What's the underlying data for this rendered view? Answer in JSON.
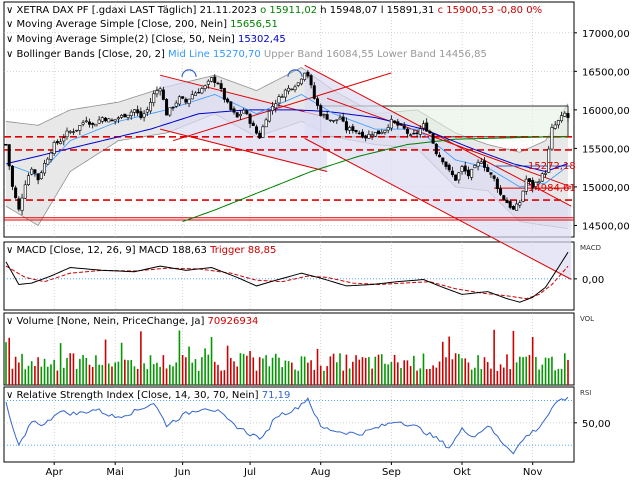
{
  "colors": {
    "price": "#000000",
    "sma200": "#008000",
    "sma50": "#0000cc",
    "bb_mid": "#3399ff",
    "bb_band": "#909090",
    "bb_fill": "#e8e8e8",
    "trend_red": "#e00000",
    "channel_fill": "#dcdcf4",
    "rect_fill": "#e4f2e4",
    "up": "#009900",
    "down": "#cc0000",
    "ref_blue": "#3366cc",
    "rsi_line": "#3366cc",
    "macd_trigger": "#cc0000"
  },
  "header": {
    "row1": [
      {
        "text": "XETRA DAX PF [.gdaxi LAST Täglich]  21.11.2023",
        "color": "#000000"
      },
      {
        "text": "o 15911,02",
        "color": "#008000"
      },
      {
        "text": "h 15948,07",
        "color": "#000000"
      },
      {
        "text": "l 15891,31",
        "color": "#000000"
      },
      {
        "text": "c 15900,53",
        "color": "#cc0000"
      },
      {
        "text": "-0,80",
        "color": "#cc0000"
      },
      {
        "text": "0%",
        "color": "#cc0000"
      }
    ],
    "row2": [
      {
        "text": "Moving Average Simple  [Close, 200, Nein]",
        "color": "#000000"
      },
      {
        "text": "15656,51",
        "color": "#008000"
      }
    ],
    "row3": [
      {
        "text": "Moving Average Simple(2)  [Close, 50, Nein]",
        "color": "#000000"
      },
      {
        "text": "15302,45",
        "color": "#0000cc"
      }
    ],
    "row4": [
      {
        "text": "Bollinger Bands  [Close, 20, 2]",
        "color": "#000000"
      },
      {
        "text": "Mid Line 15270,70",
        "color": "#3399ff"
      },
      {
        "text": "Upper Band 16084,55",
        "color": "#999999"
      },
      {
        "text": "Lower Band 14456,85",
        "color": "#999999"
      }
    ]
  },
  "panels": {
    "macd": {
      "title": [
        {
          "text": "MACD  [Close, 12, 26, 9]",
          "color": "#000000"
        },
        {
          "text": "MACD 188,63",
          "color": "#000000"
        },
        {
          "text": "Trigger 88,85",
          "color": "#cc0000"
        }
      ],
      "side_label": "MACD",
      "tick_label": "0,00"
    },
    "volume": {
      "title": [
        {
          "text": "Volume  [None, Nein, PriceChange, Ja]",
          "color": "#000000"
        },
        {
          "text": "70926934",
          "color": "#cc0000"
        }
      ],
      "side_label": "VOL"
    },
    "rsi": {
      "title": [
        {
          "text": "Relative Strength Index  [Close, 14, 30, 70, Nein]",
          "color": "#000000"
        },
        {
          "text": "71,19",
          "color": "#3366cc"
        }
      ],
      "side_label": "RSI",
      "tick_label": "50,00"
    }
  },
  "price_labels": {
    "a": "15272,18",
    "b": "14984,61"
  },
  "chart_data": {
    "type": "candlestick",
    "y_ticks": [
      14500,
      15000,
      15500,
      16000,
      16500,
      17000
    ],
    "y_tick_labels": [
      "14500,00",
      "15000,00",
      "15500,00",
      "16000,00",
      "16500,00",
      "17000,00"
    ],
    "ylim": [
      14350,
      17400
    ],
    "x_ticks": [
      {
        "label": "Apr",
        "day": 15
      },
      {
        "label": "Mai",
        "day": 34
      },
      {
        "label": "Jun",
        "day": 55
      },
      {
        "label": "Jul",
        "day": 76
      },
      {
        "label": "Aug",
        "day": 98
      },
      {
        "label": "Sep",
        "day": 120
      },
      {
        "label": "Okt",
        "day": 142
      },
      {
        "label": "Nov",
        "day": 164
      }
    ],
    "n_days": 176,
    "price_anchors": [
      [
        0,
        15550
      ],
      [
        2,
        15000
      ],
      [
        4,
        14700
      ],
      [
        6,
        15050
      ],
      [
        8,
        15250
      ],
      [
        10,
        15100
      ],
      [
        12,
        15300
      ],
      [
        15,
        15550
      ],
      [
        17,
        15600
      ],
      [
        19,
        15700
      ],
      [
        22,
        15750
      ],
      [
        25,
        15880
      ],
      [
        27,
        15800
      ],
      [
        30,
        15900
      ],
      [
        33,
        15850
      ],
      [
        35,
        15900
      ],
      [
        38,
        15950
      ],
      [
        40,
        16000
      ],
      [
        42,
        15900
      ],
      [
        44,
        16000
      ],
      [
        46,
        16200
      ],
      [
        48,
        16300
      ],
      [
        50,
        15950
      ],
      [
        52,
        16050
      ],
      [
        54,
        16150
      ],
      [
        56,
        16100
      ],
      [
        58,
        16200
      ],
      [
        60,
        16250
      ],
      [
        62,
        16300
      ],
      [
        64,
        16400
      ],
      [
        66,
        16350
      ],
      [
        68,
        16150
      ],
      [
        70,
        16000
      ],
      [
        72,
        15900
      ],
      [
        74,
        16000
      ],
      [
        76,
        15850
      ],
      [
        78,
        15700
      ],
      [
        79,
        15650
      ],
      [
        81,
        15900
      ],
      [
        83,
        16050
      ],
      [
        85,
        16150
      ],
      [
        87,
        16250
      ],
      [
        89,
        16300
      ],
      [
        91,
        16350
      ],
      [
        93,
        16500
      ],
      [
        94,
        16450
      ],
      [
        96,
        16150
      ],
      [
        98,
        15950
      ],
      [
        100,
        15900
      ],
      [
        102,
        15850
      ],
      [
        104,
        15900
      ],
      [
        106,
        15750
      ],
      [
        108,
        15750
      ],
      [
        110,
        15700
      ],
      [
        112,
        15650
      ],
      [
        114,
        15700
      ],
      [
        116,
        15700
      ],
      [
        118,
        15750
      ],
      [
        120,
        15850
      ],
      [
        122,
        15800
      ],
      [
        124,
        15750
      ],
      [
        126,
        15650
      ],
      [
        128,
        15700
      ],
      [
        130,
        15800
      ],
      [
        132,
        15700
      ],
      [
        134,
        15450
      ],
      [
        136,
        15350
      ],
      [
        138,
        15200
      ],
      [
        140,
        15100
      ],
      [
        142,
        15250
      ],
      [
        144,
        15150
      ],
      [
        146,
        15250
      ],
      [
        148,
        15350
      ],
      [
        150,
        15200
      ],
      [
        152,
        15100
      ],
      [
        154,
        14900
      ],
      [
        156,
        14800
      ],
      [
        158,
        14700
      ],
      [
        160,
        14800
      ],
      [
        162,
        15100
      ],
      [
        164,
        15000
      ],
      [
        166,
        15100
      ],
      [
        168,
        15200
      ],
      [
        170,
        15750
      ],
      [
        172,
        15850
      ],
      [
        174,
        15950
      ],
      [
        175,
        15900
      ]
    ],
    "sma200_anchors": [
      [
        55,
        14550
      ],
      [
        65,
        14700
      ],
      [
        80,
        14950
      ],
      [
        95,
        15200
      ],
      [
        110,
        15400
      ],
      [
        125,
        15550
      ],
      [
        140,
        15620
      ],
      [
        160,
        15640
      ],
      [
        175,
        15656
      ]
    ],
    "sma50_anchors": [
      [
        0,
        15300
      ],
      [
        15,
        15450
      ],
      [
        30,
        15600
      ],
      [
        45,
        15750
      ],
      [
        60,
        15950
      ],
      [
        75,
        16000
      ],
      [
        90,
        16000
      ],
      [
        100,
        15980
      ],
      [
        115,
        15900
      ],
      [
        130,
        15750
      ],
      [
        145,
        15500
      ],
      [
        158,
        15300
      ],
      [
        168,
        15200
      ],
      [
        175,
        15302
      ]
    ],
    "bb_mid_anchors": [
      [
        0,
        15300
      ],
      [
        10,
        15150
      ],
      [
        20,
        15600
      ],
      [
        35,
        15850
      ],
      [
        50,
        16000
      ],
      [
        65,
        16200
      ],
      [
        78,
        15950
      ],
      [
        92,
        16200
      ],
      [
        102,
        15950
      ],
      [
        115,
        15750
      ],
      [
        128,
        15750
      ],
      [
        140,
        15350
      ],
      [
        150,
        15250
      ],
      [
        160,
        15000
      ],
      [
        168,
        15050
      ],
      [
        175,
        15270
      ]
    ],
    "bb_halfwidth_anchors": [
      [
        0,
        550
      ],
      [
        10,
        650
      ],
      [
        20,
        400
      ],
      [
        35,
        250
      ],
      [
        50,
        300
      ],
      [
        65,
        250
      ],
      [
        78,
        300
      ],
      [
        92,
        350
      ],
      [
        102,
        300
      ],
      [
        115,
        200
      ],
      [
        128,
        250
      ],
      [
        140,
        350
      ],
      [
        150,
        300
      ],
      [
        160,
        450
      ],
      [
        168,
        550
      ],
      [
        175,
        810
      ]
    ],
    "horizontal_levels": [
      15650,
      15480,
      14830,
      14600,
      14570
    ],
    "green_rect": {
      "x0": 98,
      "x1": 176,
      "y0": 15650,
      "y1": 16050
    },
    "macd_anchors": [
      [
        0,
        120
      ],
      [
        4,
        -40
      ],
      [
        8,
        -30
      ],
      [
        14,
        20
      ],
      [
        20,
        80
      ],
      [
        30,
        60
      ],
      [
        40,
        50
      ],
      [
        48,
        90
      ],
      [
        56,
        60
      ],
      [
        64,
        80
      ],
      [
        72,
        10
      ],
      [
        78,
        -50
      ],
      [
        84,
        -10
      ],
      [
        92,
        40
      ],
      [
        98,
        5
      ],
      [
        106,
        -50
      ],
      [
        114,
        -40
      ],
      [
        122,
        -20
      ],
      [
        130,
        -5
      ],
      [
        136,
        -60
      ],
      [
        142,
        -110
      ],
      [
        150,
        -90
      ],
      [
        156,
        -140
      ],
      [
        160,
        -165
      ],
      [
        164,
        -130
      ],
      [
        168,
        -60
      ],
      [
        172,
        80
      ],
      [
        175,
        188
      ]
    ],
    "macd_trigger_anchors": [
      [
        0,
        90
      ],
      [
        6,
        10
      ],
      [
        12,
        -20
      ],
      [
        20,
        40
      ],
      [
        30,
        60
      ],
      [
        40,
        55
      ],
      [
        50,
        75
      ],
      [
        60,
        70
      ],
      [
        70,
        40
      ],
      [
        78,
        -10
      ],
      [
        86,
        -20
      ],
      [
        94,
        20
      ],
      [
        100,
        10
      ],
      [
        108,
        -30
      ],
      [
        116,
        -40
      ],
      [
        124,
        -30
      ],
      [
        132,
        -20
      ],
      [
        140,
        -70
      ],
      [
        148,
        -100
      ],
      [
        156,
        -120
      ],
      [
        162,
        -140
      ],
      [
        166,
        -110
      ],
      [
        170,
        -40
      ],
      [
        175,
        89
      ]
    ],
    "macd_range": [
      -220,
      260
    ],
    "rsi_anchors": [
      [
        0,
        68
      ],
      [
        2,
        45
      ],
      [
        4,
        30
      ],
      [
        6,
        38
      ],
      [
        8,
        52
      ],
      [
        12,
        48
      ],
      [
        16,
        60
      ],
      [
        22,
        58
      ],
      [
        28,
        62
      ],
      [
        34,
        55
      ],
      [
        40,
        60
      ],
      [
        46,
        68
      ],
      [
        50,
        48
      ],
      [
        56,
        58
      ],
      [
        62,
        64
      ],
      [
        66,
        60
      ],
      [
        70,
        50
      ],
      [
        76,
        40
      ],
      [
        80,
        36
      ],
      [
        84,
        56
      ],
      [
        90,
        62
      ],
      [
        94,
        72
      ],
      [
        98,
        46
      ],
      [
        104,
        42
      ],
      [
        110,
        40
      ],
      [
        116,
        46
      ],
      [
        122,
        52
      ],
      [
        128,
        46
      ],
      [
        134,
        36
      ],
      [
        138,
        28
      ],
      [
        142,
        44
      ],
      [
        146,
        38
      ],
      [
        150,
        48
      ],
      [
        154,
        34
      ],
      [
        158,
        24
      ],
      [
        162,
        38
      ],
      [
        166,
        46
      ],
      [
        170,
        62
      ],
      [
        173,
        72
      ],
      [
        175,
        71
      ]
    ],
    "rsi_range": [
      15,
      82
    ],
    "rsi_bands": [
      70,
      30
    ]
  }
}
